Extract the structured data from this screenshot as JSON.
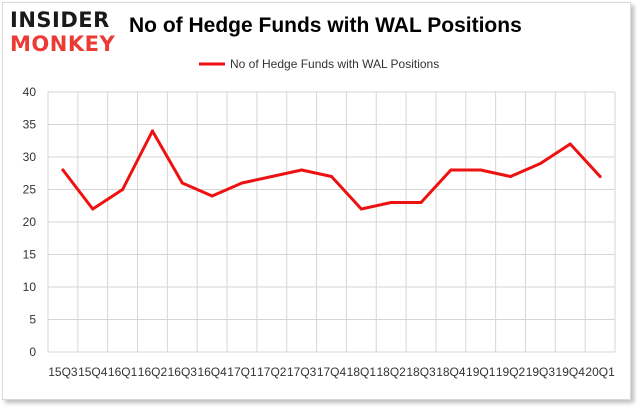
{
  "logo": {
    "line1": "INSIDER",
    "line2": "MONKEY",
    "colors": {
      "line1": "#1a1a1a",
      "line2": "#ea3b35"
    }
  },
  "chart_data": {
    "type": "line",
    "title": "No of Hedge Funds with WAL Positions",
    "xlabel": "",
    "ylabel": "",
    "categories": [
      "15Q3",
      "15Q4",
      "16Q1",
      "16Q2",
      "16Q3",
      "16Q4",
      "17Q1",
      "17Q2",
      "17Q3",
      "17Q4",
      "18Q1",
      "18Q2",
      "18Q3",
      "18Q4",
      "19Q1",
      "19Q2",
      "19Q3",
      "19Q4",
      "20Q1"
    ],
    "series": [
      {
        "name": "No of Hedge Funds with WAL Positions",
        "color": "#ee1111",
        "values": [
          28,
          22,
          25,
          34,
          26,
          24,
          26,
          27,
          28,
          27,
          22,
          23,
          23,
          28,
          28,
          27,
          29,
          32,
          27
        ]
      }
    ],
    "ylim": [
      0,
      40
    ],
    "yticks": [
      0,
      5,
      10,
      15,
      20,
      25,
      30,
      35,
      40
    ],
    "grid": true,
    "legend_position": "top-center"
  }
}
